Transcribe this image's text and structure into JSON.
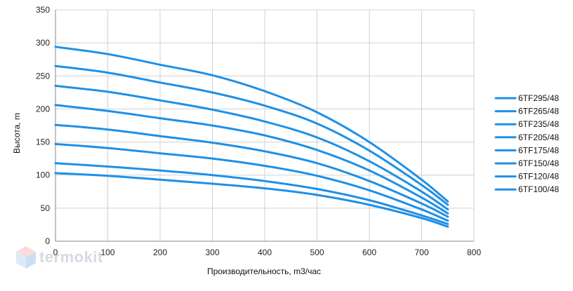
{
  "chart_data": {
    "type": "line",
    "xlabel": "Производительность, m3/час",
    "ylabel": "Высота, m",
    "xlim": [
      0,
      800
    ],
    "ylim": [
      0,
      350
    ],
    "xticks": [
      0,
      100,
      200,
      300,
      400,
      500,
      600,
      700,
      800
    ],
    "yticks": [
      0,
      50,
      100,
      150,
      200,
      250,
      300,
      350
    ],
    "grid": true,
    "legend_position": "right",
    "line_color": "#1e90e6",
    "x": [
      0,
      100,
      200,
      300,
      400,
      500,
      600,
      700,
      750
    ],
    "series": [
      {
        "name": "6TF295/48",
        "values": [
          294,
          283,
          267,
          251,
          227,
          195,
          150,
          93,
          60
        ]
      },
      {
        "name": "6TF265/48",
        "values": [
          265,
          255,
          240,
          225,
          205,
          178,
          137,
          85,
          55
        ]
      },
      {
        "name": "6TF235/48",
        "values": [
          235,
          226,
          213,
          199,
          181,
          157,
          121,
          75,
          48
        ]
      },
      {
        "name": "6TF205/48",
        "values": [
          206,
          197,
          186,
          175,
          160,
          138,
          107,
          66,
          42
        ]
      },
      {
        "name": "6TF175/48",
        "values": [
          176,
          169,
          159,
          149,
          136,
          118,
          91,
          57,
          37
        ]
      },
      {
        "name": "6TF150/48",
        "values": [
          147,
          141,
          133,
          125,
          114,
          99,
          77,
          48,
          31
        ]
      },
      {
        "name": "6TF120/48",
        "values": [
          118,
          113,
          107,
          100,
          91,
          79,
          62,
          39,
          26
        ]
      },
      {
        "name": "6TF100/48",
        "values": [
          103,
          99,
          93,
          87,
          80,
          70,
          55,
          35,
          22
        ]
      }
    ]
  },
  "logo": {
    "text": "termokit"
  }
}
